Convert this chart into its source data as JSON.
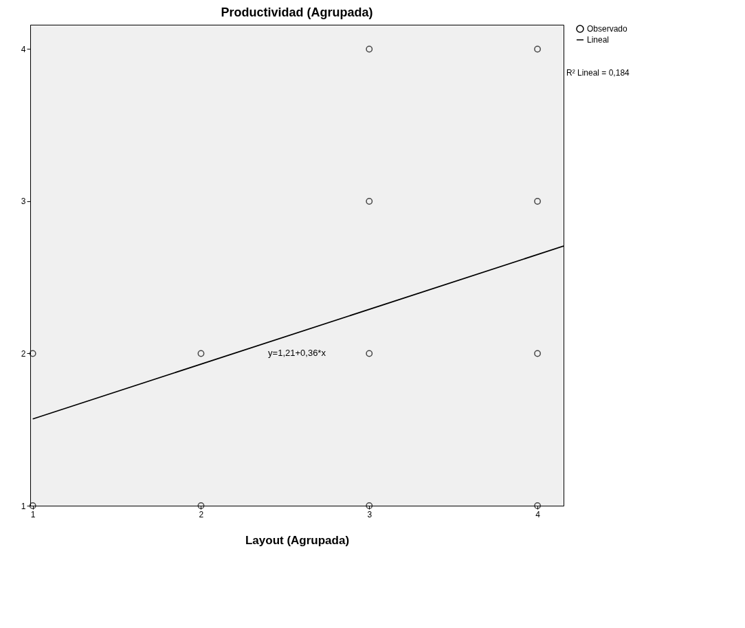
{
  "chart_data": {
    "type": "scatter",
    "title": "Productividad (Agrupada)",
    "xlabel": "Layout (Agrupada)",
    "xlim": [
      0.985,
      4.155
    ],
    "ylim": [
      1,
      4.16
    ],
    "xticks": [
      1,
      2,
      3,
      4
    ],
    "yticks": [
      1,
      2,
      3,
      4
    ],
    "legend": "top right",
    "series": [
      {
        "name": "Observado",
        "color": "#000000",
        "x": [
          1,
          1,
          2,
          2,
          3,
          3,
          3,
          3,
          4,
          4,
          4,
          4
        ],
        "values": [
          2,
          1,
          2,
          1,
          4,
          3,
          2,
          1,
          4,
          3,
          2,
          1
        ]
      },
      {
        "name": "Lineal",
        "type": "line",
        "color": "#000000",
        "x": [
          1,
          4.155
        ],
        "values": [
          1.57,
          2.706
        ]
      }
    ],
    "annotations": [
      "y=1,21+0,36*x",
      "R² Lineal = 0,184"
    ]
  }
}
